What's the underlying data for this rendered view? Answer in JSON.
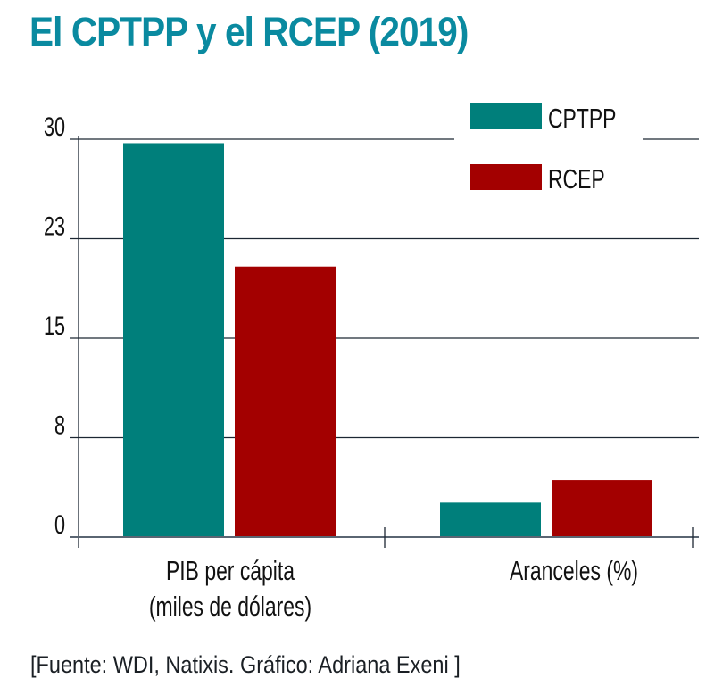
{
  "title": "El CPTPP y el RCEP (2019)",
  "source": "[Fuente: WDI, Natixis. Gráfico: Adriana Exeni ]",
  "colors": {
    "title": "#0a8aa0",
    "CPTPP": "#007f7b",
    "RCEP": "#a30000",
    "grid": "#1c2733"
  },
  "chart_data": {
    "type": "bar",
    "title": "El CPTPP y el RCEP (2019)",
    "xlabel": "",
    "ylabel": "",
    "categories": [
      "PIB per cápita\n(miles de dólares)",
      "Aranceles (%)"
    ],
    "category_lines": [
      [
        "PIB per cápita",
        "(miles de dólares)"
      ],
      [
        "Aranceles (%)"
      ]
    ],
    "series": [
      {
        "name": "CPTPP",
        "values": [
          29.7,
          2.6
        ]
      },
      {
        "name": "RCEP",
        "values": [
          20.4,
          4.3
        ]
      }
    ],
    "ylim": [
      0,
      30
    ],
    "yticks": [
      {
        "value": 0,
        "label": "0"
      },
      {
        "value": 7.5,
        "label": "8"
      },
      {
        "value": 15,
        "label": "15"
      },
      {
        "value": 22.5,
        "label": "23"
      },
      {
        "value": 30,
        "label": "30"
      }
    ],
    "grid": true,
    "legend": {
      "placement": "top-right",
      "entries": [
        "CPTPP",
        "RCEP"
      ]
    }
  }
}
